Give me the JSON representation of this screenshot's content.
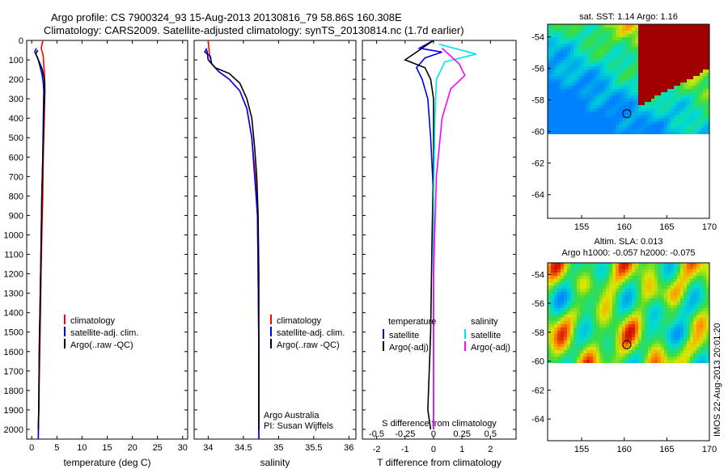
{
  "title_line1": "Argo profile: CS 7900324_93 15-Aug-2013 20130816_79 58.86S 160.308E",
  "title_line2": "Climatology: CARS2009. Satellite-adjusted climatology: synTS_20130814.nc (1.7d earlier)",
  "watermark": "IMOS 22-Aug-2013 20:01:20",
  "colors": {
    "climatology": "#ff0000",
    "satellite": "#0000ff",
    "argo": "#000000",
    "sat_salinity": "#00e5e5",
    "argo_salinity": "#ff00ff"
  },
  "chart_data": [
    {
      "type": "line",
      "xlabel": "temperature (deg C)",
      "xlim": [
        -1,
        31
      ],
      "ylim": [
        2050,
        0
      ],
      "xticks": [
        0,
        5,
        10,
        15,
        20,
        25,
        30
      ],
      "yticks": [
        0,
        100,
        200,
        300,
        400,
        500,
        600,
        700,
        800,
        900,
        1000,
        1100,
        1200,
        1300,
        1400,
        1500,
        1600,
        1700,
        1800,
        1900,
        2000
      ],
      "legend": [
        "climatology",
        "satellite-adj. clim.",
        "Argo(..raw -QC)"
      ],
      "series": [
        {
          "name": "climatology",
          "color": "#ff0000",
          "points": [
            [
              2.2,
              0
            ],
            [
              1.9,
              40
            ],
            [
              2.3,
              80
            ],
            [
              2.4,
              130
            ],
            [
              2.5,
              160
            ],
            [
              2.6,
              220
            ],
            [
              2.6,
              260
            ],
            [
              2.5,
              400
            ],
            [
              2.3,
              600
            ],
            [
              2.2,
              800
            ],
            [
              2.0,
              1000
            ],
            [
              1.8,
              1300
            ],
            [
              1.6,
              1600
            ],
            [
              1.4,
              1900
            ],
            [
              1.3,
              2050
            ]
          ]
        },
        {
          "name": "satellite-adj. clim.",
          "color": "#0000ff",
          "points": [
            [
              0.9,
              40
            ],
            [
              0.6,
              60
            ],
            [
              1.2,
              90
            ],
            [
              1.6,
              130
            ],
            [
              2.0,
              170
            ],
            [
              2.3,
              220
            ],
            [
              2.4,
              260
            ],
            [
              2.3,
              400
            ],
            [
              2.2,
              600
            ],
            [
              2.0,
              800
            ],
            [
              1.9,
              1000
            ],
            [
              1.7,
              1300
            ],
            [
              1.5,
              1600
            ],
            [
              1.4,
              1900
            ],
            [
              1.3,
              2050
            ]
          ]
        },
        {
          "name": "Argo(..raw -QC)",
          "color": "#000000",
          "points": [
            [
              1.2,
              50
            ],
            [
              0.8,
              70
            ],
            [
              1.5,
              110
            ],
            [
              2.1,
              150
            ],
            [
              2.5,
              200
            ],
            [
              2.6,
              260
            ],
            [
              2.4,
              400
            ],
            [
              2.2,
              600
            ],
            [
              2.0,
              800
            ],
            [
              1.9,
              1000
            ],
            [
              1.7,
              1300
            ],
            [
              1.5,
              1600
            ],
            [
              1.4,
              1900
            ],
            [
              1.3,
              2000
            ]
          ]
        }
      ]
    },
    {
      "type": "line",
      "xlabel": "salinity",
      "xlim": [
        33.8,
        36.1
      ],
      "ylim": [
        2050,
        0
      ],
      "xticks": [
        34,
        34.5,
        35,
        35.5,
        36
      ],
      "legend": [
        "climatology",
        "satellite-adj. clim.",
        "Argo(..raw -QC)"
      ],
      "annotation": [
        "Argo Australia",
        "PI: Susan Wijffels"
      ],
      "series": [
        {
          "name": "climatology",
          "color": "#ff0000",
          "points": [
            [
              34.0,
              0
            ],
            [
              34.02,
              80
            ],
            [
              34.05,
              120
            ],
            [
              34.15,
              160
            ],
            [
              34.3,
              200
            ],
            [
              34.45,
              260
            ],
            [
              34.55,
              350
            ],
            [
              34.62,
              500
            ],
            [
              34.67,
              700
            ],
            [
              34.7,
              900
            ],
            [
              34.71,
              1200
            ],
            [
              34.72,
              1600
            ],
            [
              34.72,
              2050
            ]
          ]
        },
        {
          "name": "satellite-adj. clim.",
          "color": "#0000ff",
          "points": [
            [
              33.98,
              40
            ],
            [
              33.95,
              60
            ],
            [
              34.03,
              80
            ],
            [
              34.05,
              120
            ],
            [
              34.15,
              160
            ],
            [
              34.3,
              200
            ],
            [
              34.45,
              260
            ],
            [
              34.55,
              350
            ],
            [
              34.62,
              500
            ],
            [
              34.66,
              700
            ],
            [
              34.7,
              900
            ],
            [
              34.71,
              1200
            ],
            [
              34.72,
              1600
            ],
            [
              34.72,
              2050
            ]
          ]
        },
        {
          "name": "Argo(..raw -QC)",
          "color": "#000000",
          "points": [
            [
              33.98,
              50
            ],
            [
              34.0,
              100
            ],
            [
              34.1,
              140
            ],
            [
              34.3,
              170
            ],
            [
              34.45,
              220
            ],
            [
              34.55,
              300
            ],
            [
              34.62,
              400
            ],
            [
              34.66,
              550
            ],
            [
              34.69,
              700
            ],
            [
              34.71,
              900
            ],
            [
              34.72,
              1200
            ],
            [
              34.72,
              1600
            ],
            [
              34.72,
              2000
            ]
          ]
        }
      ]
    },
    {
      "type": "line",
      "xlabel": "T difference from climatology",
      "x2label": "S difference from climatology",
      "xlim": [
        -2.5,
        2.9
      ],
      "ylim": [
        2050,
        0
      ],
      "xticks": [
        -2,
        -1,
        0,
        1,
        2
      ],
      "x2tick_labels": [
        "-0.5",
        "-0.25",
        "0",
        "0.25",
        "0.5"
      ],
      "x2tick_positions": [
        -2,
        -1,
        0,
        1,
        2
      ],
      "legend_temperature_title": "temperature",
      "legend_salinity_title": "salinity",
      "legend_temperature": [
        "satellite",
        "Argo(-adj)"
      ],
      "legend_salinity": [
        "satellite",
        "Argo(-adj)"
      ],
      "series": [
        {
          "name": "temperature satellite",
          "color": "#0000ff",
          "points": [
            [
              0,
              0
            ],
            [
              -0.5,
              40
            ],
            [
              0.3,
              60
            ],
            [
              -0.3,
              90
            ],
            [
              -0.6,
              140
            ],
            [
              -0.4,
              200
            ],
            [
              -0.2,
              300
            ],
            [
              -0.1,
              500
            ],
            [
              0,
              800
            ],
            [
              0,
              1200
            ],
            [
              0,
              2000
            ]
          ]
        },
        {
          "name": "temperature Argo(-adj)",
          "color": "#000000",
          "points": [
            [
              0,
              0
            ],
            [
              -0.6,
              60
            ],
            [
              -1.0,
              100
            ],
            [
              -0.3,
              140
            ],
            [
              -0.1,
              200
            ],
            [
              0,
              300
            ],
            [
              0,
              600
            ],
            [
              -0.05,
              1000
            ],
            [
              -0.1,
              1500
            ],
            [
              -0.2,
              1900
            ],
            [
              -0.1,
              2000
            ]
          ]
        },
        {
          "name": "salinity satellite",
          "color": "#00e5e5",
          "points": [
            [
              0.2,
              20
            ],
            [
              1.5,
              70
            ],
            [
              0.4,
              110
            ],
            [
              0.1,
              200
            ],
            [
              0.05,
              400
            ],
            [
              0,
              800
            ],
            [
              0,
              2000
            ]
          ]
        },
        {
          "name": "salinity Argo(-adj)",
          "color": "#ff00ff",
          "points": [
            [
              0.3,
              40
            ],
            [
              0.9,
              120
            ],
            [
              1.1,
              180
            ],
            [
              0.6,
              250
            ],
            [
              0.3,
              400
            ],
            [
              0.1,
              700
            ],
            [
              0,
              1200
            ],
            [
              0,
              2000
            ]
          ]
        }
      ]
    },
    {
      "type": "heatmap",
      "title": "sat. SST: 1.14 Argo: 1.16",
      "xlim": [
        151,
        170
      ],
      "ylim": [
        -65.5,
        -53.2
      ],
      "xticks": [
        155,
        160,
        165,
        170
      ],
      "yticks": [
        -54,
        -56,
        -58,
        -60,
        -62,
        -64
      ],
      "profile_marker": [
        160.3,
        -58.86
      ]
    },
    {
      "type": "heatmap",
      "title": "Altim. SLA: 0.013",
      "subtitle": "Argo h1000: -0.057 h2000: -0.075",
      "xlim": [
        151,
        170
      ],
      "ylim": [
        -65.5,
        -53.2
      ],
      "xticks": [
        155,
        160,
        165,
        170
      ],
      "yticks": [
        -54,
        -56,
        -58,
        -60,
        -62,
        -64
      ],
      "profile_marker": [
        160.3,
        -58.86
      ]
    }
  ]
}
